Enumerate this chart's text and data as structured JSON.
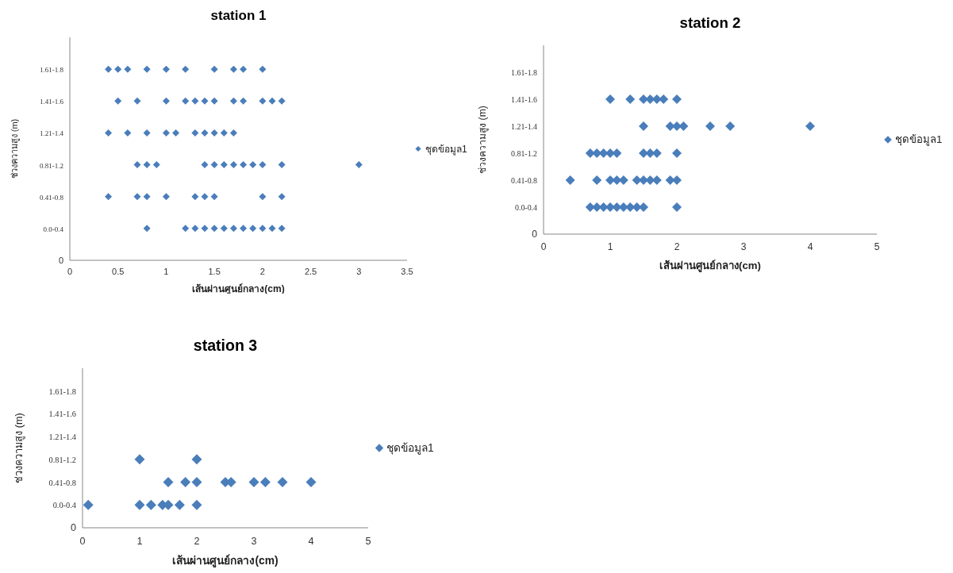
{
  "chart_data": [
    {
      "type": "scatter",
      "orientation": "horizontal",
      "title": "station 1",
      "xlabel": "เส้นผ่านศูนย์กลาง(cm)",
      "ylabel": "ช่วงความสูง (m)",
      "xlim": [
        0,
        3.5
      ],
      "xticks": [
        0,
        0.5,
        1,
        1.5,
        2,
        2.5,
        3,
        3.5
      ],
      "categories": [
        null,
        "1.61-1.8",
        "1.41-1.6",
        "1.21-1.4",
        "0.81-1.2",
        "0.41-0.8",
        "0.0-0.4",
        "0"
      ],
      "marker": "diamond",
      "legend": "right",
      "grid": false,
      "series": [
        {
          "name": "ชุดข้อมูล1",
          "color": "#4a7ebb",
          "x": [
            "1.61-1.8",
            "1.61-1.8",
            "1.61-1.8",
            "1.61-1.8",
            "1.61-1.8",
            "1.61-1.8",
            "1.61-1.8",
            "1.61-1.8",
            "1.61-1.8",
            "1.61-1.8",
            "1.41-1.6",
            "1.41-1.6",
            "1.41-1.6",
            "1.41-1.6",
            "1.41-1.6",
            "1.41-1.6",
            "1.41-1.6",
            "1.41-1.6",
            "1.41-1.6",
            "1.41-1.6",
            "1.41-1.6",
            "1.41-1.6",
            "1.21-1.4",
            "1.21-1.4",
            "1.21-1.4",
            "1.21-1.4",
            "1.21-1.4",
            "1.21-1.4",
            "1.21-1.4",
            "1.21-1.4",
            "1.21-1.4",
            "1.21-1.4",
            "0.81-1.2",
            "0.81-1.2",
            "0.81-1.2",
            "0.81-1.2",
            "0.81-1.2",
            "0.81-1.2",
            "0.81-1.2",
            "0.81-1.2",
            "0.81-1.2",
            "0.81-1.2",
            "0.81-1.2",
            "0.81-1.2",
            "0.41-0.8",
            "0.41-0.8",
            "0.41-0.8",
            "0.41-0.8",
            "0.41-0.8",
            "0.41-0.8",
            "0.41-0.8",
            "0.41-0.8",
            "0.41-0.8",
            "0.0-0.4",
            "0.0-0.4",
            "0.0-0.4",
            "0.0-0.4",
            "0.0-0.4",
            "0.0-0.4",
            "0.0-0.4",
            "0.0-0.4",
            "0.0-0.4",
            "0.0-0.4",
            "0.0-0.4",
            "0.0-0.4"
          ],
          "values": [
            0.4,
            0.5,
            0.6,
            0.8,
            1.0,
            1.2,
            1.5,
            1.7,
            1.8,
            2.0,
            0.5,
            0.7,
            1.0,
            1.2,
            1.3,
            1.4,
            1.5,
            1.7,
            1.8,
            2.0,
            2.1,
            2.2,
            0.4,
            0.6,
            0.8,
            1.0,
            1.1,
            1.3,
            1.4,
            1.5,
            1.6,
            1.7,
            0.7,
            0.8,
            0.9,
            1.4,
            1.5,
            1.6,
            1.7,
            1.8,
            1.9,
            2.0,
            2.2,
            3.0,
            0.4,
            0.7,
            0.8,
            1.0,
            1.3,
            1.4,
            1.5,
            2.0,
            2.2,
            0.8,
            1.2,
            1.3,
            1.4,
            1.5,
            1.6,
            1.7,
            1.8,
            1.9,
            2.0,
            2.1,
            2.2
          ]
        }
      ]
    },
    {
      "type": "scatter",
      "orientation": "horizontal",
      "title": "station 2",
      "xlabel": "เส้นผ่านศูนย์กลาง(cm)",
      "ylabel": "ช่วงความสูง (m)",
      "xlim": [
        0,
        5
      ],
      "xticks": [
        0,
        1,
        2,
        3,
        4,
        5
      ],
      "categories": [
        null,
        "1.61-1.8",
        "1.41-1.6",
        "1.21-1.4",
        "0.81-1.2",
        "0.41-0.8",
        "0.0-0.4",
        "0"
      ],
      "marker": "diamond",
      "legend": "right",
      "grid": false,
      "series": [
        {
          "name": "ชุดข้อมูล1",
          "color": "#4a7ebb",
          "x": [
            "1.41-1.6",
            "1.41-1.6",
            "1.41-1.6",
            "1.41-1.6",
            "1.41-1.6",
            "1.41-1.6",
            "1.41-1.6",
            "1.21-1.4",
            "1.21-1.4",
            "1.21-1.4",
            "1.21-1.4",
            "1.21-1.4",
            "1.21-1.4",
            "1.21-1.4",
            "0.81-1.2",
            "0.81-1.2",
            "0.81-1.2",
            "0.81-1.2",
            "0.81-1.2",
            "0.81-1.2",
            "0.81-1.2",
            "0.81-1.2",
            "0.81-1.2",
            "0.41-0.8",
            "0.41-0.8",
            "0.41-0.8",
            "0.41-0.8",
            "0.41-0.8",
            "0.41-0.8",
            "0.41-0.8",
            "0.41-0.8",
            "0.41-0.8",
            "0.41-0.8",
            "0.41-0.8",
            "0.0-0.4",
            "0.0-0.4",
            "0.0-0.4",
            "0.0-0.4",
            "0.0-0.4",
            "0.0-0.4",
            "0.0-0.4",
            "0.0-0.4",
            "0.0-0.4",
            "0.0-0.4"
          ],
          "values": [
            1.0,
            1.3,
            1.5,
            1.6,
            1.7,
            1.8,
            2.0,
            1.5,
            1.9,
            2.0,
            2.1,
            2.5,
            2.8,
            4.0,
            0.7,
            0.8,
            0.9,
            1.0,
            1.1,
            1.5,
            1.6,
            1.7,
            2.0,
            0.4,
            0.8,
            1.0,
            1.1,
            1.2,
            1.4,
            1.5,
            1.6,
            1.7,
            1.9,
            2.0,
            0.7,
            0.8,
            0.9,
            1.0,
            1.1,
            1.2,
            1.3,
            1.4,
            1.5,
            2.0
          ]
        }
      ]
    },
    {
      "type": "scatter",
      "orientation": "horizontal",
      "title": "station 3",
      "xlabel": "เส้นผ่านศูนย์กลาง(cm)",
      "ylabel": "ช่วงความสูง (m)",
      "xlim": [
        0,
        5
      ],
      "xticks": [
        0,
        1,
        2,
        3,
        4,
        5
      ],
      "categories": [
        null,
        "1.61-1.8",
        "1.41-1.6",
        "1.21-1.4",
        "0.81-1.2",
        "0.41-0.8",
        "0.0-0.4",
        "0"
      ],
      "marker": "diamond",
      "legend": "right",
      "grid": false,
      "series": [
        {
          "name": "ชุดข้อมูล1",
          "color": "#4a7ebb",
          "x": [
            "0.81-1.2",
            "0.81-1.2",
            "0.41-0.8",
            "0.41-0.8",
            "0.41-0.8",
            "0.41-0.8",
            "0.41-0.8",
            "0.41-0.8",
            "0.41-0.8",
            "0.41-0.8",
            "0.41-0.8",
            "0.0-0.4",
            "0.0-0.4",
            "0.0-0.4",
            "0.0-0.4",
            "0.0-0.4",
            "0.0-0.4",
            "0.0-0.4"
          ],
          "values": [
            1.0,
            2.0,
            1.5,
            1.8,
            2.0,
            2.5,
            2.6,
            3.0,
            3.2,
            3.5,
            4.0,
            0.1,
            1.0,
            1.2,
            1.4,
            1.5,
            1.7,
            2.0
          ]
        }
      ]
    }
  ]
}
